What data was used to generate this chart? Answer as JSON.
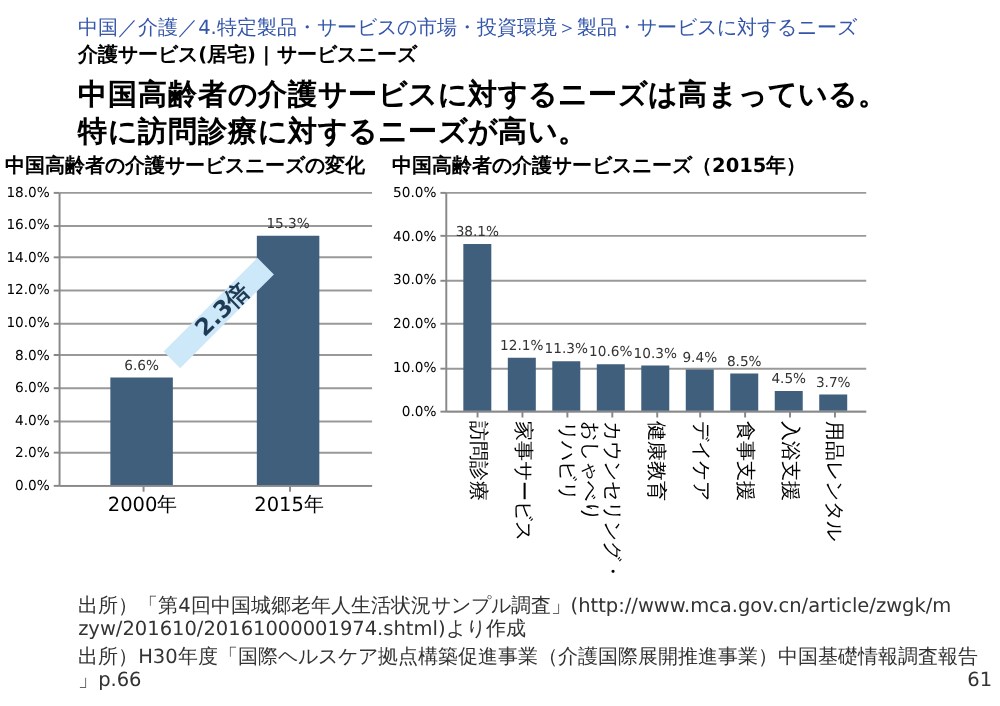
{
  "chart_data": [
    {
      "type": "bar",
      "title": "中国高齢者の介護サービスニーズの変化",
      "annotations": [
        "中国／介護／4.特定製品・サービスの市場・投資環境＞製品・サービスに対するニーズ",
        "介護サービス(居宅) | サービスニーズ",
        "中国高齢者の介護サービスに対するニーズは高まっている。",
        "特に訪問診療に対するニーズが高い。",
        "2.3倍"
      ],
      "categories": [
        "2000年",
        "2015年"
      ],
      "values": [
        6.6,
        15.3
      ],
      "value_labels": [
        "6.6%",
        "15.3%"
      ],
      "color": "#3f5f7c",
      "ylim": [
        0,
        18
      ],
      "yticks": [
        {
          "value": 0,
          "label": "0.0%"
        },
        {
          "value": 2,
          "label": "2.0%"
        },
        {
          "value": 4,
          "label": "4.0%"
        },
        {
          "value": 6,
          "label": "6.0%"
        },
        {
          "value": 8,
          "label": "8.0%"
        },
        {
          "value": 10,
          "label": "10.0%"
        },
        {
          "value": 12,
          "label": "12.0%"
        },
        {
          "value": 14,
          "label": "14.0%"
        },
        {
          "value": 16,
          "label": "16.0%"
        },
        {
          "value": 18,
          "label": "18.0%"
        }
      ],
      "grid": "y",
      "legend": false
    },
    {
      "type": "bar",
      "title": "中国高齢者の介護サービスニーズ（2015年）",
      "annotations": [
        "出所）「第4回中国城郷老年人生活状況サンプル調査」(http://www.mca.gov.cn/article/zwgk/mzyw/201610/20161000001974.shtml)より作成",
        "出所）H30年度「国際ヘルスケア拠点構築促進事業（介護国際展開推進事業）中国基礎情報調査報告」p.66",
        "61"
      ],
      "categories": [
        "訪問診療",
        "家事サービス",
        "リハビリ",
        "カウンセリング・おしゃべり",
        "健康教育",
        "デイケア",
        "食事支援",
        "入浴支援",
        "用品レンタル"
      ],
      "values": [
        38.1,
        12.1,
        11.3,
        10.6,
        10.3,
        9.4,
        8.5,
        4.5,
        3.7
      ],
      "value_labels": [
        "38.1%",
        "12.1%",
        "11.3%",
        "10.6%",
        "10.3%",
        "9.4%",
        "8.5%",
        "4.5%",
        "3.7%"
      ],
      "color": "#3f5f7c",
      "ylim": [
        0,
        50
      ],
      "yticks": [
        {
          "value": 0,
          "label": "0.0%"
        },
        {
          "value": 10,
          "label": "10.0%"
        },
        {
          "value": 20,
          "label": "20.0%"
        },
        {
          "value": 30,
          "label": "30.0%"
        },
        {
          "value": 40,
          "label": "40.0%"
        },
        {
          "value": 50,
          "label": "50.0%"
        }
      ],
      "grid": "y",
      "legend": false
    }
  ]
}
